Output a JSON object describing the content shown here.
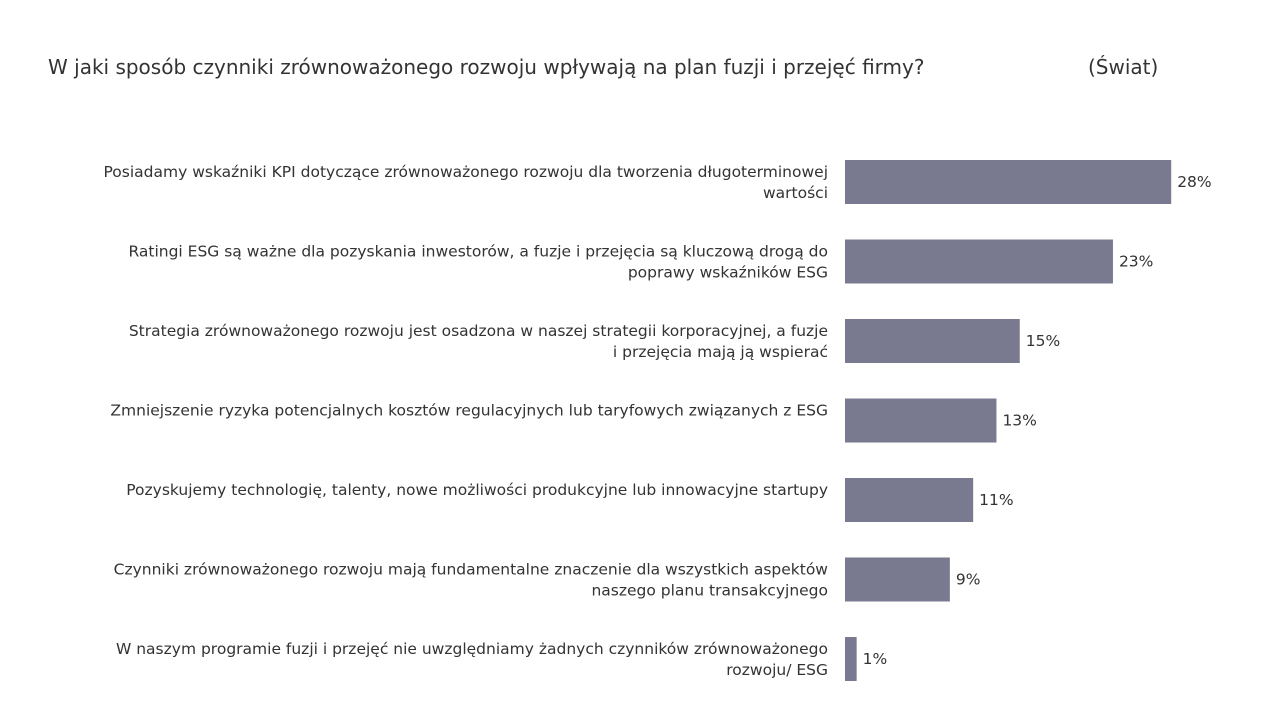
{
  "title": "W jaki sposób czynniki zrównoważonego rozwoju wpływają na plan fuzji i przejęć firmy?",
  "region_label": "(Świat)",
  "chart_data": {
    "type": "bar",
    "orientation": "horizontal",
    "categories": [
      [
        "Posiadamy wskaźniki KPI dotyczące zrównoważonego rozwoju dla tworzenia długoterminowej",
        "wartości"
      ],
      [
        "Ratingi ESG są ważne dla pozyskania inwestorów, a fuzje i przejęcia są kluczową drogą do",
        "poprawy wskaźników ESG"
      ],
      [
        "Strategia zrównoważonego rozwoju jest osadzona w naszej strategii korporacyjnej, a fuzje",
        "i przejęcia mają ją wspierać"
      ],
      [
        "Zmniejszenie ryzyka potencjalnych kosztów regulacyjnych lub taryfowych związanych z ESG"
      ],
      [
        "Pozyskujemy technologię, talenty, nowe możliwości produkcyjne lub innowacyjne startupy"
      ],
      [
        "Czynniki zrównoważonego rozwoju mają fundamentalne znaczenie dla wszystkich aspektów",
        "naszego planu transakcyjnego"
      ],
      [
        "W naszym programie fuzji i przejęć nie uwzględniamy żadnych czynników zrównoważonego",
        "rozwoju/ ESG"
      ]
    ],
    "values": [
      28,
      23,
      15,
      13,
      11,
      9,
      1
    ],
    "value_labels": [
      "28%",
      "23%",
      "15%",
      "13%",
      "11%",
      "9%",
      "1%"
    ],
    "unit": "%",
    "bar_color": "#79798f",
    "legend": "none",
    "grid": false
  }
}
